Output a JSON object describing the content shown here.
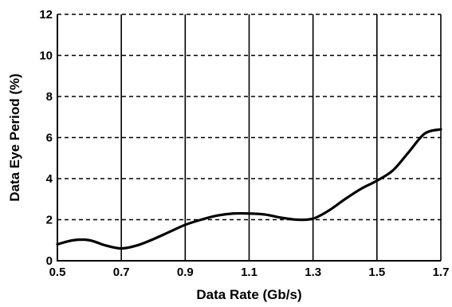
{
  "chart_data": {
    "type": "line",
    "xlabel": "Data Rate (Gb/s)",
    "ylabel": "Data Eye Period (%)",
    "xlim": [
      0.5,
      1.7
    ],
    "ylim": [
      0,
      12
    ],
    "x_ticks": [
      "0.5",
      "0.7",
      "0.9",
      "1.1",
      "1.3",
      "1.5",
      "1.7"
    ],
    "y_ticks": [
      "0",
      "2",
      "4",
      "6",
      "8",
      "10",
      "12"
    ],
    "grid": {
      "vertical": "solid",
      "horizontal": "dashed"
    },
    "colors": {
      "line": "#000000",
      "grid": "#000000"
    },
    "series": [
      {
        "x": [
          0.5,
          0.55,
          0.6,
          0.65,
          0.7,
          0.75,
          0.8,
          0.85,
          0.9,
          0.95,
          1.0,
          1.05,
          1.1,
          1.15,
          1.2,
          1.25,
          1.3,
          1.35,
          1.4,
          1.45,
          1.5,
          1.55,
          1.6,
          1.65,
          1.7
        ],
        "y": [
          0.8,
          1.0,
          1.0,
          0.75,
          0.6,
          0.75,
          1.05,
          1.4,
          1.75,
          2.0,
          2.2,
          2.3,
          2.3,
          2.25,
          2.1,
          2.0,
          2.05,
          2.45,
          3.0,
          3.5,
          3.9,
          4.4,
          5.3,
          6.2,
          6.4
        ]
      }
    ]
  }
}
